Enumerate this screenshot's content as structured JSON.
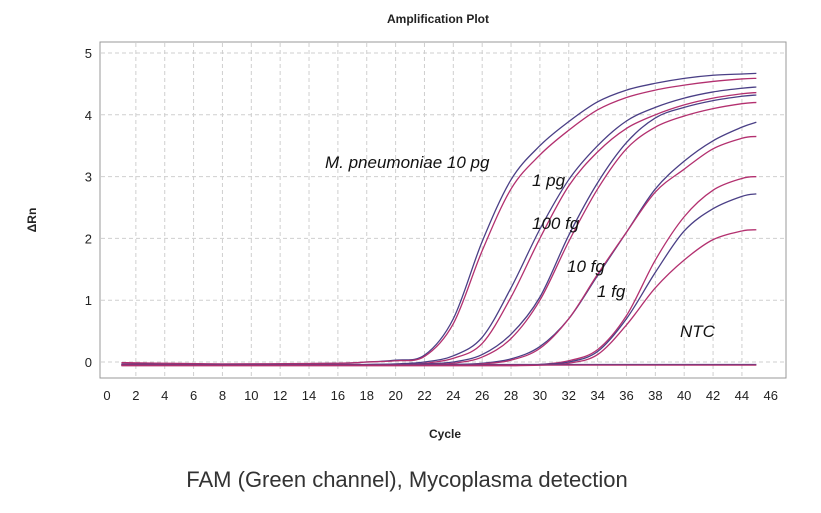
{
  "chart_data": {
    "type": "line",
    "title": "Amplification Plot",
    "xlabel": "Cycle",
    "ylabel": "ΔRn",
    "caption": "FAM (Green channel), Mycoplasma detection",
    "xlim": [
      0,
      46
    ],
    "ylim": [
      -0.25,
      5.2
    ],
    "xticks": [
      "0",
      "2",
      "4",
      "6",
      "8",
      "10",
      "12",
      "14",
      "16",
      "18",
      "20",
      "22",
      "24",
      "26",
      "28",
      "30",
      "32",
      "34",
      "36",
      "38",
      "40",
      "42",
      "44",
      "46"
    ],
    "yticks": [
      "0",
      "1",
      "2",
      "3",
      "4",
      "5"
    ],
    "grid": true,
    "legend": "none",
    "colors": {
      "blue": "#4a3f86",
      "pink": "#b3306f"
    },
    "annotations": [
      "M. pneumoniae 10 pg",
      "1 pg",
      "100 fg",
      "10 fg",
      "1 fg",
      "NTC"
    ],
    "x": [
      1,
      8,
      16,
      18,
      20,
      22,
      24,
      26,
      28,
      30,
      32,
      34,
      36,
      38,
      40,
      42,
      44,
      45
    ],
    "series": [
      {
        "group": "M. pneumoniae 10 pg",
        "color": "blue",
        "values": [
          -0.03,
          -0.04,
          -0.02,
          0.0,
          0.03,
          0.11,
          0.7,
          1.95,
          2.95,
          3.5,
          3.89,
          4.21,
          4.4,
          4.51,
          4.59,
          4.64,
          4.66,
          4.67
        ]
      },
      {
        "group": "M. pneumoniae 10 pg",
        "color": "pink",
        "values": [
          -0.01,
          -0.03,
          -0.02,
          0.0,
          0.02,
          0.09,
          0.62,
          1.8,
          2.8,
          3.35,
          3.75,
          4.08,
          4.28,
          4.4,
          4.48,
          4.54,
          4.58,
          4.59
        ]
      },
      {
        "group": "1 pg",
        "color": "blue",
        "values": [
          -0.05,
          -0.05,
          -0.05,
          -0.04,
          -0.03,
          0.0,
          0.1,
          0.4,
          1.2,
          2.15,
          2.95,
          3.5,
          3.9,
          4.12,
          4.27,
          4.37,
          4.43,
          4.45
        ]
      },
      {
        "group": "1 pg",
        "color": "pink",
        "values": [
          -0.04,
          -0.05,
          -0.05,
          -0.05,
          -0.04,
          -0.02,
          0.06,
          0.3,
          1.05,
          2.0,
          2.85,
          3.4,
          3.78,
          4.0,
          4.16,
          4.27,
          4.34,
          4.36
        ]
      },
      {
        "group": "100 fg",
        "color": "blue",
        "values": [
          -0.05,
          -0.05,
          -0.05,
          -0.05,
          -0.04,
          -0.03,
          0.0,
          0.12,
          0.45,
          1.05,
          2.05,
          2.9,
          3.55,
          3.95,
          4.12,
          4.23,
          4.3,
          4.32
        ]
      },
      {
        "group": "100 fg",
        "color": "pink",
        "values": [
          -0.04,
          -0.05,
          -0.05,
          -0.05,
          -0.05,
          -0.04,
          -0.02,
          0.08,
          0.38,
          1.0,
          1.95,
          2.8,
          3.45,
          3.8,
          3.98,
          4.1,
          4.18,
          4.2
        ]
      },
      {
        "group": "10 fg",
        "color": "blue",
        "values": [
          -0.05,
          -0.05,
          -0.05,
          -0.05,
          -0.05,
          -0.05,
          -0.04,
          -0.02,
          0.05,
          0.25,
          0.7,
          1.4,
          2.1,
          2.8,
          3.25,
          3.58,
          3.8,
          3.88
        ]
      },
      {
        "group": "10 fg",
        "color": "pink",
        "values": [
          -0.04,
          -0.05,
          -0.05,
          -0.05,
          -0.05,
          -0.05,
          -0.05,
          -0.03,
          0.03,
          0.22,
          0.7,
          1.42,
          2.1,
          2.75,
          3.12,
          3.45,
          3.62,
          3.65
        ]
      },
      {
        "group": "1 fg",
        "color": "pink",
        "values": [
          -0.05,
          -0.05,
          -0.05,
          -0.05,
          -0.05,
          -0.05,
          -0.05,
          -0.05,
          -0.05,
          -0.04,
          0.02,
          0.2,
          0.75,
          1.65,
          2.35,
          2.78,
          2.97,
          3.0
        ]
      },
      {
        "group": "1 fg",
        "color": "blue",
        "values": [
          -0.05,
          -0.05,
          -0.05,
          -0.05,
          -0.05,
          -0.05,
          -0.05,
          -0.05,
          -0.05,
          -0.04,
          0.0,
          0.17,
          0.7,
          1.45,
          2.12,
          2.48,
          2.68,
          2.72
        ]
      },
      {
        "group": "1 fg",
        "color": "pink",
        "values": [
          -0.06,
          -0.06,
          -0.06,
          -0.06,
          -0.06,
          -0.06,
          -0.06,
          -0.06,
          -0.06,
          -0.05,
          -0.02,
          0.12,
          0.6,
          1.2,
          1.65,
          1.98,
          2.12,
          2.14
        ]
      },
      {
        "group": "NTC",
        "color": "blue",
        "values": [
          -0.04,
          -0.04,
          -0.04,
          -0.04,
          -0.04,
          -0.04,
          -0.04,
          -0.04,
          -0.04,
          -0.04,
          -0.04,
          -0.04,
          -0.04,
          -0.04,
          -0.04,
          -0.04,
          -0.04,
          -0.04
        ]
      },
      {
        "group": "NTC",
        "color": "pink",
        "values": [
          -0.05,
          -0.05,
          -0.05,
          -0.05,
          -0.05,
          -0.05,
          -0.05,
          -0.05,
          -0.05,
          -0.05,
          -0.05,
          -0.05,
          -0.05,
          -0.05,
          -0.05,
          -0.05,
          -0.05,
          -0.05
        ]
      }
    ]
  }
}
